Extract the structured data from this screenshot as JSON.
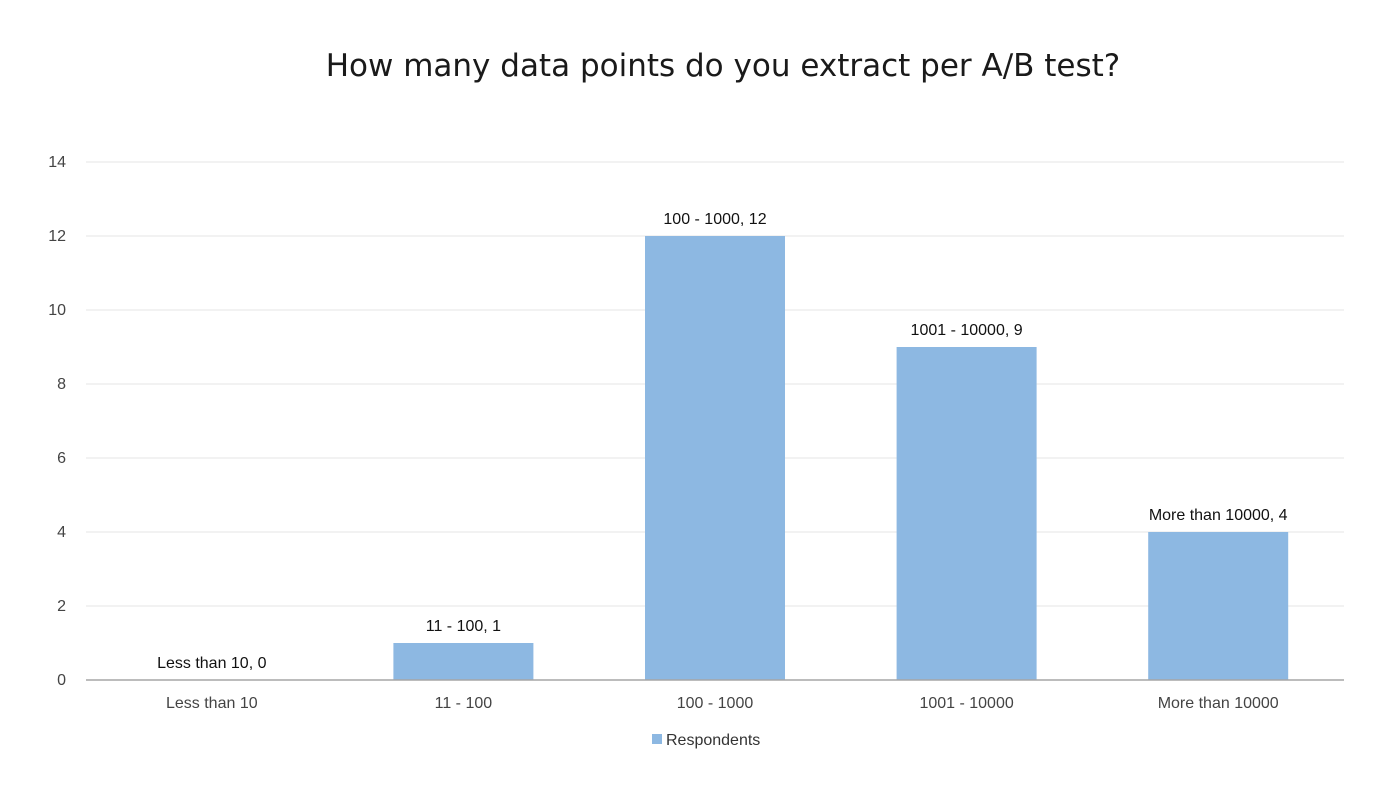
{
  "chart_data": {
    "type": "bar",
    "title": "How many data points do you extract per A/B test?",
    "categories": [
      "Less than 10",
      "11 - 100",
      "100 - 1000",
      "1001 - 10000",
      "More than 10000"
    ],
    "series": [
      {
        "name": "Respondents",
        "values": [
          0,
          1,
          12,
          9,
          4
        ]
      }
    ],
    "data_labels": [
      "Less than 10, 0",
      "11 - 100, 1",
      "100 - 1000, 12",
      "1001 - 10000, 9",
      "More than 10000, 4"
    ],
    "ylim": [
      0,
      14
    ],
    "yticks": [
      0,
      2,
      4,
      6,
      8,
      10,
      12,
      14
    ],
    "xlabel": "",
    "ylabel": "",
    "grid": true,
    "legend_position": "bottom",
    "colors": {
      "bar": "#8db8e2",
      "grid": "#e6e6e6",
      "axis": "#a6a6a6"
    }
  }
}
